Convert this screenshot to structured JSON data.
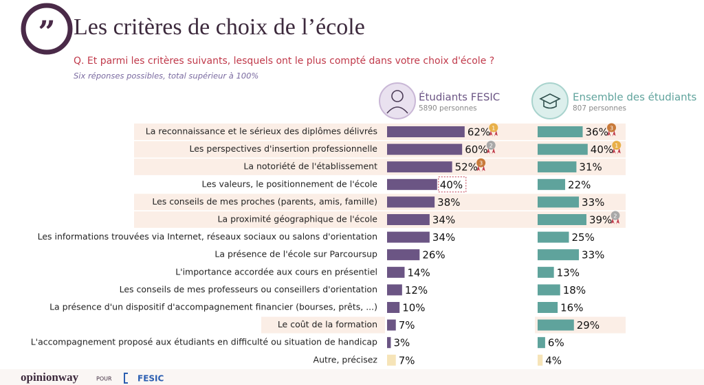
{
  "chart_data": {
    "type": "bar",
    "title": "Les critères de choix de l’école",
    "question": "Q. Et parmi les critères suivants, lesquels ont le plus compté dans votre choix d'école ?",
    "subtitle": "Six réponses possibles, total supérieur à 100%",
    "categories": [
      "La reconnaissance et le sérieux des diplômes délivrés",
      "Les perspectives d'insertion professionnelle",
      "La notoriété de l'établissement",
      "Les valeurs, le positionnement de l'école",
      "Les conseils de mes proches (parents, amis, famille)",
      "La proximité géographique de l'école",
      "Les informations trouvées via Internet, réseaux sociaux ou salons d'orientation",
      "La présence de l'école sur Parcoursup",
      "L'importance accordée aux cours en présentiel",
      "Les conseils de mes professeurs ou conseillers d'orientation",
      "La présence d'un dispositif d'accompagnement financier (bourses, prêts, ...)",
      "Le coût de la formation",
      "L'accompagnement proposé aux étudiants en difficulté ou situation de handicap",
      "Autre, précisez"
    ],
    "series": [
      {
        "name": "Étudiants FESIC",
        "base": "5890 personnes",
        "color": "#6b5584",
        "values": [
          62,
          60,
          52,
          40,
          38,
          34,
          34,
          26,
          14,
          12,
          10,
          7,
          3,
          7
        ],
        "value_labels": [
          "62%",
          "60%",
          "52%",
          "40%",
          "38%",
          "34%",
          "34%",
          "26%",
          "14%",
          "12%",
          "10%",
          "7%",
          "3%",
          "7%"
        ],
        "ranks": [
          1,
          2,
          3,
          null,
          null,
          null,
          null,
          null,
          null,
          null,
          null,
          null,
          null,
          null
        ],
        "colors": [
          "#6b5584",
          "#6b5584",
          "#6b5584",
          "#6b5584",
          "#6b5584",
          "#6b5584",
          "#6b5584",
          "#6b5584",
          "#6b5584",
          "#6b5584",
          "#6b5584",
          "#6b5584",
          "#6b5584",
          "#f6e4b8"
        ]
      },
      {
        "name": "Ensemble des étudiants",
        "base": "807 personnes",
        "color": "#5fa39c",
        "values": [
          36,
          40,
          31,
          22,
          33,
          39,
          25,
          33,
          13,
          18,
          16,
          29,
          6,
          4
        ],
        "value_labels": [
          "36%",
          "40%",
          "31%",
          "22%",
          "33%",
          "39%",
          "25%",
          "33%",
          "13%",
          "18%",
          "16%",
          "29%",
          "6%",
          "4%"
        ],
        "ranks": [
          3,
          1,
          null,
          null,
          null,
          2,
          null,
          null,
          null,
          null,
          null,
          null,
          null,
          null
        ],
        "colors": [
          "#5fa39c",
          "#5fa39c",
          "#5fa39c",
          "#5fa39c",
          "#5fa39c",
          "#5fa39c",
          "#5fa39c",
          "#5fa39c",
          "#5fa39c",
          "#5fa39c",
          "#5fa39c",
          "#5fa39c",
          "#5fa39c",
          "#f6e4b8"
        ]
      }
    ],
    "footer": {
      "brand": "opinionway",
      "for": "POUR",
      "partner": "FESIC"
    }
  }
}
